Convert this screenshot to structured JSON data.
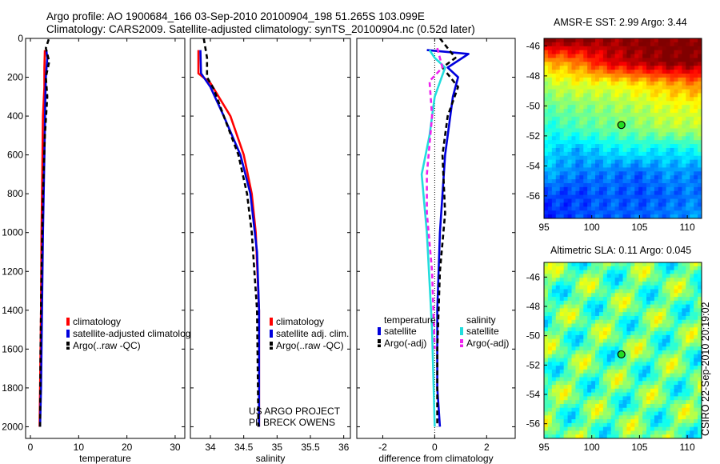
{
  "header": {
    "line1": "Argo profile: AO 1900684_166 03-Sep-2010 20100904_198 51.265S 103.099E",
    "line2": "Climatology: CARS2009. Satellite-adjusted climatology: synTS_20100904.nc (0.52d later)"
  },
  "colors": {
    "red": "#ff0000",
    "blue": "#0000dd",
    "black": "#000000",
    "cyan": "#22dddd",
    "magenta": "#ee22ee",
    "marker": "#22dd22"
  },
  "footer": {
    "project": "US ARGO PROJECT",
    "pi": "PI: BRECK OWENS",
    "stamp": "CSIRO 22-Sep-2010 20:19:02"
  },
  "chart_data": [
    {
      "type": "line",
      "xlabel": "temperature",
      "ylabel": "",
      "xlim": [
        -1,
        32
      ],
      "ylim": [
        2060,
        0
      ],
      "y_reversed": true,
      "xticks": [
        "0",
        "10",
        "20",
        "30"
      ],
      "yticks": [
        "0",
        "200",
        "400",
        "600",
        "800",
        "1000",
        "1200",
        "1400",
        "1600",
        "1800",
        "2000"
      ],
      "legend": {
        "position": "bottom-right",
        "entries": [
          "climatology",
          "satellite-adjusted climatolog",
          "Argo(..raw -QC)"
        ]
      },
      "series": [
        {
          "name": "climatology",
          "color": "red",
          "dashed": false,
          "x": [
            3.0,
            2.9,
            2.9,
            2.6,
            2.5,
            2.3,
            2.2,
            2.0,
            1.9
          ],
          "y": [
            60,
            150,
            250,
            400,
            600,
            1000,
            1400,
            1800,
            2000
          ]
        },
        {
          "name": "satellite-adjusted climatolog",
          "color": "blue",
          "dashed": false,
          "x": [
            3.3,
            3.5,
            3.2,
            3.1,
            2.9,
            2.6,
            2.4,
            2.2,
            2.0
          ],
          "y": [
            60,
            100,
            200,
            300,
            600,
            1000,
            1400,
            1800,
            2000
          ]
        },
        {
          "name": "Argo(..raw -QC)",
          "color": "black",
          "dashed": true,
          "x": [
            3.8,
            3.2,
            3.9,
            3.2,
            3.5,
            3.0,
            2.6,
            2.3,
            2.1,
            2.0
          ],
          "y": [
            5,
            50,
            120,
            200,
            300,
            500,
            800,
            1200,
            1600,
            2000
          ]
        }
      ]
    },
    {
      "type": "line",
      "xlabel": "salinity",
      "ylabel": "",
      "xlim": [
        33.7,
        36.1
      ],
      "ylim": [
        2060,
        0
      ],
      "y_reversed": true,
      "xticks": [
        "34",
        "34.5",
        "35",
        "35.5",
        "36"
      ],
      "legend": {
        "position": "bottom-right",
        "entries": [
          "climatology",
          "satellite adj. clim.",
          "Argo(..raw -QC)"
        ]
      },
      "series": [
        {
          "name": "climatology",
          "color": "red",
          "dashed": false,
          "x": [
            33.82,
            33.82,
            34.0,
            34.3,
            34.5,
            34.62,
            34.68,
            34.73,
            34.73
          ],
          "y": [
            60,
            180,
            230,
            400,
            600,
            800,
            1000,
            1400,
            2000
          ]
        },
        {
          "name": "satellite adj. clim.",
          "color": "blue",
          "dashed": false,
          "x": [
            33.85,
            33.86,
            34.0,
            34.2,
            34.45,
            34.6,
            34.7,
            34.73,
            34.73
          ],
          "y": [
            60,
            180,
            250,
            400,
            600,
            800,
            1100,
            1400,
            2000
          ]
        },
        {
          "name": "Argo(..raw -QC)",
          "color": "black",
          "dashed": true,
          "x": [
            33.9,
            33.95,
            33.95,
            34.05,
            34.2,
            34.42,
            34.55,
            34.62,
            34.7,
            34.72
          ],
          "y": [
            0,
            100,
            200,
            260,
            400,
            600,
            800,
            1000,
            1400,
            2000
          ]
        }
      ]
    },
    {
      "type": "line",
      "xlabel": "difference from climatology",
      "ylabel": "",
      "xlim": [
        -3,
        3.1
      ],
      "ylim": [
        2060,
        0
      ],
      "y_reversed": true,
      "xticks": [
        "-2",
        "0",
        "2"
      ],
      "legend": {
        "position": "bottom-right",
        "groups": [
          {
            "title": "temperature",
            "entries": [
              "satellite",
              "Argo(-adj)"
            ]
          },
          {
            "title": "salinity",
            "entries": [
              "satellite",
              "Argo(-adj)"
            ]
          }
        ]
      },
      "series": [
        {
          "name": "satellite",
          "group": "temperature",
          "color": "blue",
          "dashed": false,
          "x": [
            -0.3,
            1.3,
            0.5,
            0.9,
            0.7,
            0.4,
            0.2,
            0.1,
            0.1,
            0.2
          ],
          "y": [
            60,
            80,
            150,
            200,
            300,
            600,
            1000,
            1400,
            1800,
            2000
          ]
        },
        {
          "name": "Argo(-adj)",
          "group": "temperature",
          "color": "black",
          "dashed": true,
          "x": [
            0.2,
            0.8,
            0.3,
            0.9,
            0.5,
            0.3,
            0.4,
            0.2,
            0.1,
            0.1
          ],
          "y": [
            0,
            100,
            150,
            250,
            400,
            600,
            900,
            1200,
            1600,
            2000
          ]
        },
        {
          "name": "satellite",
          "group": "salinity",
          "color": "cyan",
          "dashed": false,
          "x": [
            -0.2,
            0.0,
            0.4,
            0.0,
            -0.2,
            -0.5,
            -0.3,
            -0.1,
            0.0
          ],
          "y": [
            60,
            100,
            150,
            300,
            500,
            700,
            1000,
            1500,
            2000
          ]
        },
        {
          "name": "Argo(-adj)",
          "group": "salinity",
          "color": "magenta",
          "dashed": true,
          "x": [
            0.1,
            0.3,
            -0.2,
            -0.1,
            -0.3,
            -0.3,
            -0.1,
            0.0
          ],
          "y": [
            50,
            150,
            220,
            400,
            700,
            900,
            1200,
            1600
          ]
        }
      ],
      "zero_line": true
    },
    {
      "type": "heatmap",
      "title": "AMSR-E SST: 2.99 Argo: 3.44",
      "xlim": [
        95,
        111.5
      ],
      "ylim": [
        -57.5,
        -45.5
      ],
      "xticks": [
        "95",
        "100",
        "105",
        "110"
      ],
      "yticks": [
        "-46",
        "-48",
        "-50",
        "-52",
        "-54",
        "-56"
      ],
      "marker": {
        "lon": 103.1,
        "lat": -51.27
      },
      "colormap": "jet",
      "gradient_rows": [
        {
          "lat": -45.5,
          "values": [
            1.0,
            1.0,
            0.97,
            1.0,
            1.0,
            1.0
          ]
        },
        {
          "lat": -47.0,
          "values": [
            0.7,
            0.75,
            0.9,
            0.95,
            1.0,
            1.0
          ]
        },
        {
          "lat": -48.5,
          "values": [
            0.55,
            0.6,
            0.6,
            0.65,
            0.7,
            0.75
          ]
        },
        {
          "lat": -50.0,
          "values": [
            0.48,
            0.5,
            0.52,
            0.55,
            0.6,
            0.6
          ]
        },
        {
          "lat": -51.5,
          "values": [
            0.4,
            0.45,
            0.48,
            0.5,
            0.55,
            0.55
          ]
        },
        {
          "lat": -53.0,
          "values": [
            0.35,
            0.3,
            0.35,
            0.38,
            0.35,
            0.4
          ]
        },
        {
          "lat": -54.5,
          "values": [
            0.3,
            0.25,
            0.25,
            0.22,
            0.28,
            0.25
          ]
        },
        {
          "lat": -56.0,
          "values": [
            0.2,
            0.18,
            0.22,
            0.2,
            0.22,
            0.25
          ]
        },
        {
          "lat": -57.5,
          "values": [
            0.15,
            0.2,
            0.22,
            0.22,
            0.25,
            0.28
          ]
        }
      ]
    },
    {
      "type": "heatmap",
      "title": "Altimetric SLA: 0.11 Argo: 0.045",
      "xlim": [
        95,
        111.5
      ],
      "ylim": [
        -57,
        -45
      ],
      "xticks": [
        "95",
        "100",
        "105",
        "110"
      ],
      "yticks": [
        "-46",
        "-48",
        "-50",
        "-52",
        "-54",
        "-56"
      ],
      "marker": {
        "lon": 103.1,
        "lat": -51.27
      },
      "colormap": "jet",
      "value_range": [
        0.3,
        0.65
      ]
    }
  ]
}
